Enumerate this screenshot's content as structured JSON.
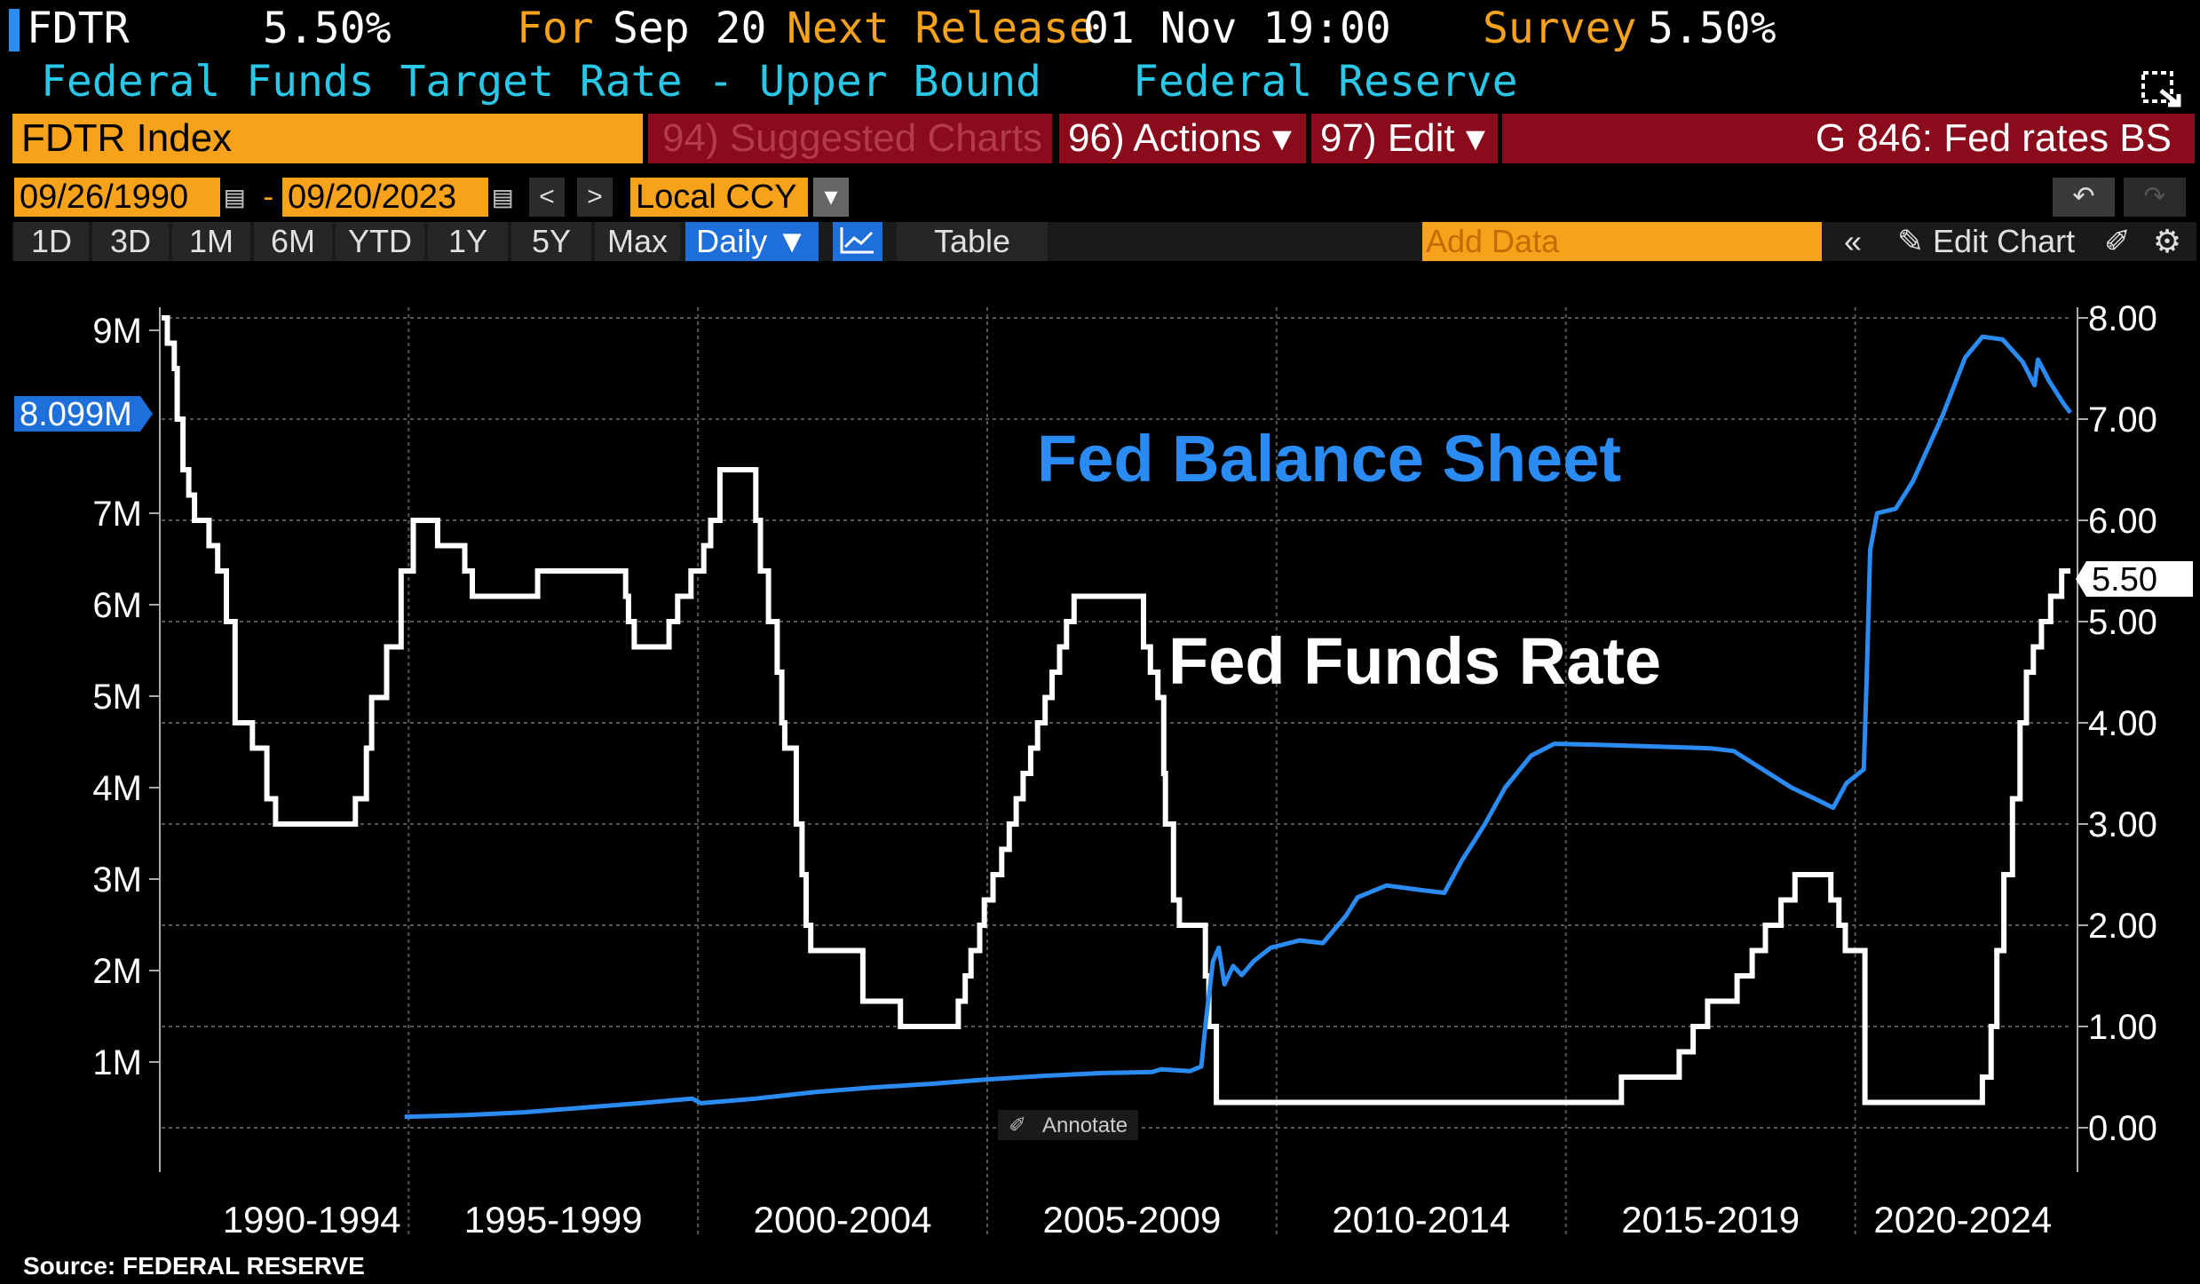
{
  "header": {
    "ticker": "FDTR",
    "last_value": "5.50%",
    "for_label": "For",
    "for_date": "Sep 20",
    "next_release_label": "Next Release",
    "next_release_value": "01 Nov 19:00",
    "survey_label": "Survey",
    "survey_value": "5.50%",
    "description": "Federal Funds Target Rate - Upper Bound",
    "source_name": "Federal Reserve"
  },
  "command_bar": {
    "security": "FDTR Index",
    "suggested": "94) Suggested Charts",
    "actions": "96) Actions ▾",
    "edit": "97) Edit ▾",
    "chart_id": "G 846: Fed rates BS"
  },
  "toolbar": {
    "start_date": "09/26/1990",
    "end_date": "09/20/2023",
    "currency": "Local CCY",
    "ranges": [
      "1D",
      "3D",
      "1M",
      "6M",
      "YTD",
      "1Y",
      "5Y",
      "Max"
    ],
    "frequency": "Daily ▼",
    "table_label": "Table",
    "add_data_placeholder": "Add Data",
    "edit_chart_label": "Edit Chart"
  },
  "footer": {
    "source": "Source: FEDERAL RESERVE"
  },
  "chart_data": {
    "type": "line",
    "annotations": [
      "Fed Balance Sheet",
      "Fed Funds Rate"
    ],
    "annotate_button": "Annotate",
    "xlabel": "",
    "x_tick_labels": [
      "1990-1994",
      "1995-1999",
      "2000-2004",
      "2005-2009",
      "2010-2014",
      "2015-2019",
      "2020-2024"
    ],
    "x_range": [
      1990.73,
      2023.72
    ],
    "left_axis": {
      "ticks": [
        "1M",
        "2M",
        "3M",
        "4M",
        "5M",
        "6M",
        "7M",
        "9M"
      ],
      "ylim": [
        0,
        9.2
      ],
      "units": "millions USD",
      "current_label": "8.099M"
    },
    "right_axis": {
      "ticks": [
        "0.00",
        "1.00",
        "2.00",
        "3.00",
        "4.00",
        "5.00",
        "6.00",
        "7.00",
        "8.00"
      ],
      "ylim": [
        -0.05,
        8.0
      ],
      "units": "percent",
      "current_label": "5.50"
    },
    "colors": {
      "balance_sheet": "#2a8bf2",
      "fed_funds": "#ffffff",
      "background": "#000000",
      "grid": "#666666"
    },
    "grid": true,
    "series": [
      {
        "name": "Fed Funds Rate",
        "axis": "right",
        "step": true,
        "points": [
          [
            1990.73,
            8.0
          ],
          [
            1990.83,
            7.75
          ],
          [
            1990.95,
            7.5
          ],
          [
            1991.0,
            7.0
          ],
          [
            1991.1,
            6.5
          ],
          [
            1991.2,
            6.25
          ],
          [
            1991.3,
            6.0
          ],
          [
            1991.55,
            5.75
          ],
          [
            1991.7,
            5.5
          ],
          [
            1991.85,
            5.0
          ],
          [
            1992.0,
            4.0
          ],
          [
            1992.3,
            3.75
          ],
          [
            1992.55,
            3.25
          ],
          [
            1992.7,
            3.0
          ],
          [
            1994.08,
            3.25
          ],
          [
            1994.27,
            3.75
          ],
          [
            1994.36,
            4.25
          ],
          [
            1994.62,
            4.75
          ],
          [
            1994.87,
            5.5
          ],
          [
            1995.08,
            6.0
          ],
          [
            1995.5,
            5.75
          ],
          [
            1995.97,
            5.5
          ],
          [
            1996.1,
            5.25
          ],
          [
            1997.23,
            5.5
          ],
          [
            1998.75,
            5.25
          ],
          [
            1998.8,
            5.0
          ],
          [
            1998.9,
            4.75
          ],
          [
            1999.5,
            5.0
          ],
          [
            1999.65,
            5.25
          ],
          [
            1999.88,
            5.5
          ],
          [
            2000.1,
            5.75
          ],
          [
            2000.22,
            6.0
          ],
          [
            2000.38,
            6.5
          ],
          [
            2001.0,
            6.0
          ],
          [
            2001.08,
            5.5
          ],
          [
            2001.22,
            5.0
          ],
          [
            2001.37,
            4.5
          ],
          [
            2001.45,
            4.0
          ],
          [
            2001.5,
            3.75
          ],
          [
            2001.7,
            3.0
          ],
          [
            2001.8,
            2.5
          ],
          [
            2001.87,
            2.0
          ],
          [
            2001.95,
            1.75
          ],
          [
            2002.85,
            1.25
          ],
          [
            2003.5,
            1.0
          ],
          [
            2004.5,
            1.25
          ],
          [
            2004.62,
            1.5
          ],
          [
            2004.72,
            1.75
          ],
          [
            2004.87,
            2.0
          ],
          [
            2004.95,
            2.25
          ],
          [
            2005.1,
            2.5
          ],
          [
            2005.25,
            2.75
          ],
          [
            2005.38,
            3.0
          ],
          [
            2005.5,
            3.25
          ],
          [
            2005.62,
            3.5
          ],
          [
            2005.75,
            3.75
          ],
          [
            2005.87,
            4.0
          ],
          [
            2006.0,
            4.25
          ],
          [
            2006.12,
            4.5
          ],
          [
            2006.25,
            4.75
          ],
          [
            2006.37,
            5.0
          ],
          [
            2006.5,
            5.25
          ],
          [
            2007.7,
            4.75
          ],
          [
            2007.82,
            4.5
          ],
          [
            2007.95,
            4.25
          ],
          [
            2008.05,
            3.5
          ],
          [
            2008.08,
            3.0
          ],
          [
            2008.22,
            2.25
          ],
          [
            2008.32,
            2.0
          ],
          [
            2008.77,
            1.5
          ],
          [
            2008.83,
            1.0
          ],
          [
            2008.96,
            0.25
          ],
          [
            2015.96,
            0.5
          ],
          [
            2016.96,
            0.75
          ],
          [
            2017.2,
            1.0
          ],
          [
            2017.45,
            1.25
          ],
          [
            2017.96,
            1.5
          ],
          [
            2018.22,
            1.75
          ],
          [
            2018.45,
            2.0
          ],
          [
            2018.72,
            2.25
          ],
          [
            2018.96,
            2.5
          ],
          [
            2019.58,
            2.25
          ],
          [
            2019.72,
            2.0
          ],
          [
            2019.83,
            1.75
          ],
          [
            2020.17,
            0.25
          ],
          [
            2022.2,
            0.5
          ],
          [
            2022.35,
            1.0
          ],
          [
            2022.45,
            1.75
          ],
          [
            2022.57,
            2.5
          ],
          [
            2022.72,
            3.25
          ],
          [
            2022.85,
            4.0
          ],
          [
            2022.96,
            4.5
          ],
          [
            2023.08,
            4.75
          ],
          [
            2023.22,
            5.0
          ],
          [
            2023.38,
            5.25
          ],
          [
            2023.57,
            5.5
          ],
          [
            2023.72,
            5.5
          ]
        ]
      },
      {
        "name": "Fed Balance Sheet",
        "axis": "left",
        "step": false,
        "points": [
          [
            1994.93,
            0.4
          ],
          [
            1996.0,
            0.42
          ],
          [
            1997.0,
            0.45
          ],
          [
            1998.0,
            0.5
          ],
          [
            1999.0,
            0.55
          ],
          [
            1999.9,
            0.6
          ],
          [
            2000.05,
            0.55
          ],
          [
            2001.0,
            0.6
          ],
          [
            2002.0,
            0.67
          ],
          [
            2003.0,
            0.72
          ],
          [
            2004.0,
            0.76
          ],
          [
            2005.0,
            0.81
          ],
          [
            2006.0,
            0.85
          ],
          [
            2007.0,
            0.88
          ],
          [
            2007.85,
            0.89
          ],
          [
            2008.0,
            0.92
          ],
          [
            2008.5,
            0.9
          ],
          [
            2008.7,
            0.95
          ],
          [
            2008.78,
            1.45
          ],
          [
            2008.9,
            2.1
          ],
          [
            2009.0,
            2.25
          ],
          [
            2009.1,
            1.85
          ],
          [
            2009.25,
            2.05
          ],
          [
            2009.4,
            1.95
          ],
          [
            2009.6,
            2.1
          ],
          [
            2009.9,
            2.25
          ],
          [
            2010.4,
            2.33
          ],
          [
            2010.8,
            2.3
          ],
          [
            2011.2,
            2.6
          ],
          [
            2011.4,
            2.8
          ],
          [
            2011.9,
            2.93
          ],
          [
            2012.5,
            2.88
          ],
          [
            2012.9,
            2.85
          ],
          [
            2013.2,
            3.2
          ],
          [
            2013.6,
            3.6
          ],
          [
            2013.95,
            4.0
          ],
          [
            2014.4,
            4.35
          ],
          [
            2014.8,
            4.48
          ],
          [
            2015.5,
            4.47
          ],
          [
            2016.5,
            4.45
          ],
          [
            2017.5,
            4.43
          ],
          [
            2017.9,
            4.4
          ],
          [
            2018.4,
            4.2
          ],
          [
            2018.9,
            4.0
          ],
          [
            2019.4,
            3.85
          ],
          [
            2019.62,
            3.78
          ],
          [
            2019.85,
            4.05
          ],
          [
            2020.15,
            4.2
          ],
          [
            2020.2,
            5.2
          ],
          [
            2020.26,
            6.6
          ],
          [
            2020.38,
            7.0
          ],
          [
            2020.7,
            7.05
          ],
          [
            2021.0,
            7.35
          ],
          [
            2021.5,
            8.05
          ],
          [
            2021.9,
            8.7
          ],
          [
            2022.2,
            8.93
          ],
          [
            2022.55,
            8.9
          ],
          [
            2022.9,
            8.65
          ],
          [
            2023.1,
            8.4
          ],
          [
            2023.16,
            8.68
          ],
          [
            2023.35,
            8.45
          ],
          [
            2023.6,
            8.2
          ],
          [
            2023.72,
            8.1
          ]
        ]
      }
    ]
  }
}
